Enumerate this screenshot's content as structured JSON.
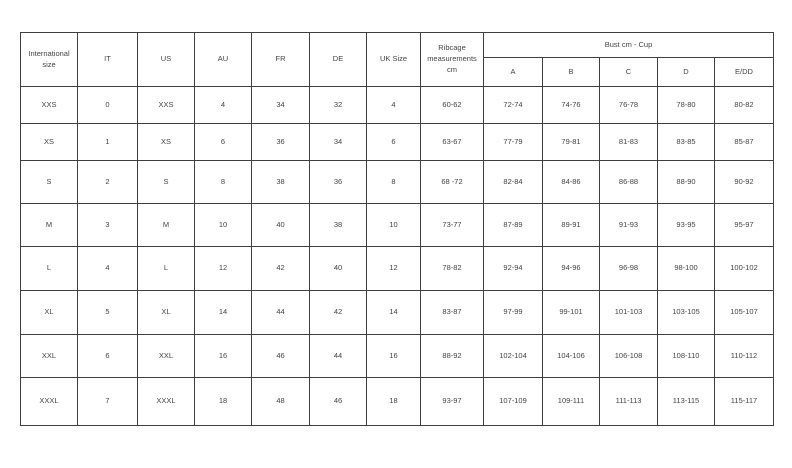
{
  "colors": {
    "background": "#ffffff",
    "table_border": "#3f3f3f",
    "text": "#434343"
  },
  "table": {
    "headers": {
      "international_size": "International size",
      "it": "IT",
      "us": "US",
      "au": "AU",
      "fr": "FR",
      "de": "DE",
      "uk_size": "UK Size",
      "ribcage": "Ribcage measurements cm",
      "bust_group": "Bust cm - Cup"
    },
    "cup_columns": [
      "A",
      "B",
      "C",
      "D",
      "E/DD"
    ],
    "rows": [
      [
        "XXS",
        "0",
        "XXS",
        "4",
        "34",
        "32",
        "4",
        "60-62",
        "72-74",
        "74-76",
        "76-78",
        "78-80",
        "80-82"
      ],
      [
        "XS",
        "1",
        "XS",
        "6",
        "36",
        "34",
        "6",
        "63-67",
        "77-79",
        "79-81",
        "81-83",
        "83-85",
        "85-87"
      ],
      [
        "S",
        "2",
        "S",
        "8",
        "38",
        "36",
        "8",
        "68 -72",
        "82-84",
        "84-86",
        "86-88",
        "88-90",
        "90-92"
      ],
      [
        "M",
        "3",
        "M",
        "10",
        "40",
        "38",
        "10",
        "73-77",
        "87-89",
        "89-91",
        "91-93",
        "93-95",
        "95-97"
      ],
      [
        "L",
        "4",
        "L",
        "12",
        "42",
        "40",
        "12",
        "78-82",
        "92-94",
        "94-96",
        "96-98",
        "98-100",
        "100-102"
      ],
      [
        "XL",
        "5",
        "XL",
        "14",
        "44",
        "42",
        "14",
        "83-87",
        "97-99",
        "99-101",
        "101-103",
        "103-105",
        "105-107"
      ],
      [
        "XXL",
        "6",
        "XXL",
        "16",
        "46",
        "44",
        "16",
        "88-92",
        "102-104",
        "104-106",
        "106-108",
        "108-110",
        "110-112"
      ],
      [
        "XXXL",
        "7",
        "XXXL",
        "18",
        "48",
        "46",
        "18",
        "93-97",
        "107-109",
        "109-111",
        "111-113",
        "113-115",
        "115-117"
      ]
    ]
  }
}
